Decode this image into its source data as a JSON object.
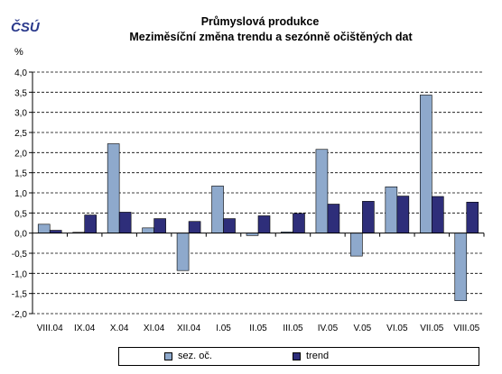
{
  "logo": {
    "text": "ČSÚ"
  },
  "header": {
    "title_line1": "Průmyslová produkce",
    "title_line2": "Meziměsíční změna trendu a sezónně očištěných dat"
  },
  "colors": {
    "series1": "#8ea9cc",
    "series2": "#2e2e7a",
    "gridline": "#000000"
  },
  "chart_data": {
    "type": "bar",
    "title": "Průmyslová produkce\nMeziměsíční změna trendu a sezónně očištěných dat",
    "ylabel": "%",
    "ylim": [
      -2.0,
      4.0
    ],
    "ytick_step": 0.5,
    "yticks": [
      "4,0",
      "3,5",
      "3,0",
      "2,5",
      "2,0",
      "1,5",
      "1,0",
      "0,5",
      "0,0",
      "-0,5",
      "-1,0",
      "-1,5",
      "-2,0"
    ],
    "grid": true,
    "legend_position": "bottom",
    "categories": [
      "VIII.04",
      "IX.04",
      "X.04",
      "XI.04",
      "XII.04",
      "I.05",
      "II.05",
      "III.05",
      "IV.05",
      "V.05",
      "VI.05",
      "VII.05",
      "VIII.05"
    ],
    "series": [
      {
        "name": "sez. oč.",
        "values": [
          0.22,
          0.02,
          2.22,
          0.13,
          -0.93,
          1.17,
          -0.06,
          0.03,
          2.08,
          -0.57,
          1.15,
          3.43,
          -1.68
        ]
      },
      {
        "name": "trend",
        "values": [
          0.07,
          0.45,
          0.52,
          0.36,
          0.29,
          0.36,
          0.43,
          0.49,
          0.72,
          0.79,
          0.92,
          0.91,
          0.77
        ]
      }
    ]
  }
}
